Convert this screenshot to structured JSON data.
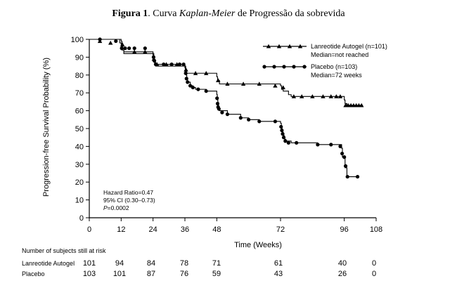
{
  "caption": {
    "figure": "Figura 1",
    "sep": ". Curva ",
    "italic": "Kaplan-Meier",
    "rest": " de Progressão da sobrevida"
  },
  "chart_data": {
    "type": "line",
    "title": "Figura 1. Curva Kaplan-Meier de Progressão da sobrevida",
    "xlabel": "Time (Weeks)",
    "ylabel": "Progression-free Survival Probability (%)",
    "xlim": [
      0,
      108
    ],
    "ylim": [
      0,
      100
    ],
    "xticks": [
      0,
      12,
      24,
      36,
      48,
      72,
      96,
      108
    ],
    "yticks": [
      0,
      10,
      20,
      30,
      40,
      50,
      60,
      70,
      80,
      90,
      100
    ],
    "grid": false,
    "legend_position": "top-right",
    "series": [
      {
        "name": "Lanreotide Autogel (n=101)",
        "note": "Median=not reached",
        "marker": "triangle",
        "color": "#000000",
        "steps": [
          [
            0,
            100
          ],
          [
            12,
            99
          ],
          [
            12.3,
            97
          ],
          [
            12.6,
            95
          ],
          [
            13,
            93
          ],
          [
            24,
            92
          ],
          [
            24.3,
            89
          ],
          [
            24.6,
            87
          ],
          [
            25,
            86
          ],
          [
            36,
            85
          ],
          [
            36.3,
            83
          ],
          [
            36.6,
            81
          ],
          [
            48,
            79
          ],
          [
            48.3,
            77
          ],
          [
            49,
            75
          ],
          [
            72,
            74
          ],
          [
            72.4,
            72
          ],
          [
            73,
            71
          ],
          [
            75,
            69
          ],
          [
            76,
            68
          ],
          [
            96,
            66
          ],
          [
            96.3,
            64
          ],
          [
            97,
            63
          ],
          [
            103,
            63
          ]
        ],
        "markers": [
          [
            4,
            99
          ],
          [
            8,
            98
          ],
          [
            12.5,
            97
          ],
          [
            17,
            93
          ],
          [
            21,
            93
          ],
          [
            24.3,
            89
          ],
          [
            25.5,
            86
          ],
          [
            29,
            86
          ],
          [
            33,
            86
          ],
          [
            36.4,
            83
          ],
          [
            40,
            81
          ],
          [
            44,
            81
          ],
          [
            48.5,
            77
          ],
          [
            52,
            75
          ],
          [
            58,
            75
          ],
          [
            64,
            75
          ],
          [
            70,
            74
          ],
          [
            73,
            73
          ],
          [
            77,
            68
          ],
          [
            80,
            68
          ],
          [
            84,
            68
          ],
          [
            88,
            68
          ],
          [
            91,
            68
          ],
          [
            93,
            68
          ],
          [
            94.5,
            68
          ],
          [
            96.5,
            63
          ],
          [
            97.5,
            63
          ],
          [
            98.5,
            63
          ],
          [
            99.5,
            63
          ],
          [
            100.5,
            63
          ],
          [
            101.5,
            63
          ],
          [
            102.5,
            63
          ]
        ]
      },
      {
        "name": "Placebo (n=103)",
        "note": "Median=72 weeks",
        "marker": "circle",
        "color": "#000000",
        "steps": [
          [
            0,
            100
          ],
          [
            11.5,
            98
          ],
          [
            12,
            96
          ],
          [
            12.3,
            94
          ],
          [
            13,
            92
          ],
          [
            24,
            91
          ],
          [
            24.3,
            89
          ],
          [
            24.6,
            87
          ],
          [
            25,
            85
          ],
          [
            36,
            84
          ],
          [
            36.2,
            82
          ],
          [
            36.4,
            80
          ],
          [
            36.7,
            78
          ],
          [
            37,
            76
          ],
          [
            38,
            74
          ],
          [
            39,
            73
          ],
          [
            40,
            72
          ],
          [
            44,
            71
          ],
          [
            48,
            69
          ],
          [
            48.2,
            66
          ],
          [
            48.4,
            63
          ],
          [
            48.7,
            61
          ],
          [
            49,
            60
          ],
          [
            52,
            58
          ],
          [
            57,
            56
          ],
          [
            60,
            55
          ],
          [
            64,
            54
          ],
          [
            72,
            53
          ],
          [
            72.3,
            50
          ],
          [
            72.6,
            48
          ],
          [
            73,
            46
          ],
          [
            73.5,
            44
          ],
          [
            74,
            43
          ],
          [
            76,
            42
          ],
          [
            86,
            41
          ],
          [
            94,
            41
          ],
          [
            95,
            39
          ],
          [
            95.3,
            34
          ],
          [
            96,
            34
          ],
          [
            96.3,
            28
          ],
          [
            97,
            23
          ],
          [
            101,
            23
          ]
        ],
        "markers": [
          [
            4,
            100
          ],
          [
            10,
            99
          ],
          [
            12.2,
            95
          ],
          [
            13.5,
            95
          ],
          [
            15,
            95
          ],
          [
            17,
            95
          ],
          [
            21,
            95
          ],
          [
            24.2,
            90
          ],
          [
            24.5,
            88
          ],
          [
            25,
            86
          ],
          [
            28,
            86
          ],
          [
            31,
            86
          ],
          [
            34,
            86
          ],
          [
            35.5,
            86
          ],
          [
            36.3,
            81
          ],
          [
            36.6,
            78
          ],
          [
            37,
            76
          ],
          [
            38,
            74
          ],
          [
            39,
            73
          ],
          [
            41,
            72
          ],
          [
            44,
            71
          ],
          [
            48.1,
            67
          ],
          [
            48.3,
            64
          ],
          [
            48.5,
            62
          ],
          [
            48.8,
            61
          ],
          [
            50,
            59
          ],
          [
            52,
            58
          ],
          [
            57,
            56
          ],
          [
            60,
            55
          ],
          [
            64,
            54
          ],
          [
            70,
            54
          ],
          [
            72.2,
            51
          ],
          [
            72.5,
            49
          ],
          [
            72.8,
            47
          ],
          [
            73.2,
            45
          ],
          [
            73.8,
            43
          ],
          [
            75,
            42
          ],
          [
            78,
            42
          ],
          [
            86,
            41
          ],
          [
            91,
            41
          ],
          [
            94.5,
            40
          ],
          [
            95.2,
            36
          ],
          [
            96,
            34
          ],
          [
            96.5,
            29
          ],
          [
            97.2,
            23
          ],
          [
            101,
            23
          ]
        ]
      }
    ],
    "annotations": [
      "Hazard Ratio=0.47",
      "95% CI (0.30–0.73)",
      "P=0.0002"
    ],
    "legend": [
      {
        "name": "Lanreotide Autogel (n=101)",
        "note": "Median=not reached",
        "marker": "triangle"
      },
      {
        "name": "Placebo (n=103)",
        "note": "Median=72 weeks",
        "marker": "circle"
      }
    ],
    "risk_table": {
      "title": "Number of subjects still at risk",
      "rows": [
        {
          "label": "Lanreotide Autogel",
          "values": [
            101,
            94,
            84,
            78,
            71,
            61,
            40,
            0
          ]
        },
        {
          "label": "Placebo",
          "values": [
            103,
            101,
            87,
            76,
            59,
            43,
            26,
            0
          ]
        }
      ]
    }
  }
}
